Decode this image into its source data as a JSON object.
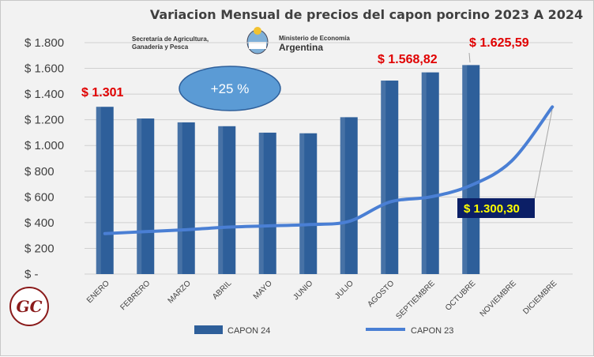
{
  "chart_data": {
    "type": "bar+line",
    "title": "Variacion Mensual de precios del capon porcino 2023 A 2024",
    "categories": [
      "ENERO",
      "FEBRERO",
      "MARZO",
      "ABRIL",
      "MAYO",
      "JUNIO",
      "JULIO",
      "AGOSTO",
      "SEPTIEMBRE",
      "OCTUBRE",
      "NOVIEMBRE",
      "DICIEMBRE"
    ],
    "y_ticks": [
      "$ -",
      "$ 200",
      "$ 400",
      "$ 600",
      "$ 800",
      "$ 1.000",
      "$ 1.200",
      "$ 1.400",
      "$ 1.600",
      "$ 1.800"
    ],
    "ylim": [
      0,
      1800
    ],
    "grid": true,
    "legend_position": "bottom",
    "series": [
      {
        "name": "CAPON 24",
        "type": "bar",
        "color": "#2e5f9a",
        "values": [
          1301,
          1210,
          1180,
          1150,
          1100,
          1095,
          1220,
          1505,
          1568.82,
          1625.59,
          null,
          null
        ]
      },
      {
        "name": "CAPON 23",
        "type": "line",
        "color": "#4a7fd4",
        "values": [
          315,
          330,
          345,
          365,
          375,
          385,
          410,
          560,
          600,
          690,
          880,
          1300.3
        ]
      }
    ],
    "annotations": {
      "enero": "$ 1.301",
      "septiembre": "$ 1.568,82",
      "octubre": "$ 1.625,59",
      "diciembre": "$ 1.300,30",
      "variation": "+25 %"
    }
  },
  "logos": {
    "left_line1": "Secretaría de Agricultura,",
    "left_line2": "Ganadería y Pesca",
    "right_line1": "Ministerio de Economía",
    "right_line2": "Argentina",
    "gc_text": "GC"
  }
}
